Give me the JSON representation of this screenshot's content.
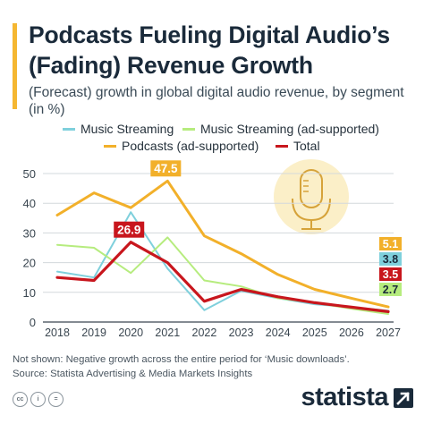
{
  "header": {
    "title": "Podcasts Fueling Digital Audio’s (Fading) Revenue Growth",
    "subtitle": "(Forecast) growth in global digital audio revenue, by segment (in %)"
  },
  "colors": {
    "accent": "#f5b731",
    "music_streaming": "#7fd0dc",
    "music_streaming_ad": "#b6ec7e",
    "podcasts": "#f2b02a",
    "total": "#c8161d",
    "grid": "#d3d8dc",
    "axis_text": "#3a4650"
  },
  "chart_data": {
    "type": "line",
    "title": "",
    "xlabel": "",
    "ylabel": "",
    "x": [
      "2018",
      "2019",
      "2020",
      "2021",
      "2022",
      "2023",
      "2024",
      "2025",
      "2026",
      "2027"
    ],
    "ylim": [
      0,
      50
    ],
    "yticks": [
      0,
      10,
      20,
      30,
      40,
      50
    ],
    "grid": "horizontal",
    "legend_position": "top",
    "series": [
      {
        "name": "Music Streaming",
        "color": "#7fd0dc",
        "values": [
          17,
          15,
          37,
          18,
          4,
          10.5,
          8,
          6,
          5,
          3.8
        ]
      },
      {
        "name": "Music Streaming (ad-supported)",
        "color": "#b6ec7e",
        "values": [
          26,
          25,
          16.5,
          28.5,
          14,
          12,
          8,
          6.5,
          4.5,
          2.7
        ]
      },
      {
        "name": "Podcasts (ad-supported)",
        "color": "#f2b02a",
        "values": [
          36,
          43.5,
          38.5,
          47.5,
          29,
          23,
          16,
          11,
          8,
          5.1
        ]
      },
      {
        "name": "Total",
        "color": "#c8161d",
        "values": [
          15,
          14,
          26.9,
          20,
          7,
          11,
          8.5,
          6.5,
          5,
          3.5
        ]
      }
    ],
    "annotations": [
      {
        "text": "47.5",
        "series": "Podcasts (ad-supported)",
        "x": "2021",
        "color": "#f2b02a"
      },
      {
        "text": "26.9",
        "series": "Total",
        "x": "2020",
        "color": "#c8161d"
      },
      {
        "text": "5.1",
        "series": "Podcasts (ad-supported)",
        "x": "2027",
        "color": "#f2b02a"
      },
      {
        "text": "3.8",
        "series": "Music Streaming",
        "x": "2027",
        "color": "#7fd0dc"
      },
      {
        "text": "3.5",
        "series": "Total",
        "x": "2027",
        "color": "#c8161d"
      },
      {
        "text": "2.7",
        "series": "Music Streaming (ad-supported)",
        "x": "2027",
        "color": "#b6ec7e"
      }
    ]
  },
  "footer": {
    "note": "Not shown: Negative growth across the entire period for ‘Music downloads’.",
    "source": "Source: Statista Advertising & Media Markets Insights",
    "cc_icons": [
      "cc-icon",
      "by-icon",
      "nd-icon"
    ],
    "brand": "statista",
    "brand_icon": "statista-arrow-icon"
  },
  "illustration": {
    "icon": "microphone-icon"
  }
}
